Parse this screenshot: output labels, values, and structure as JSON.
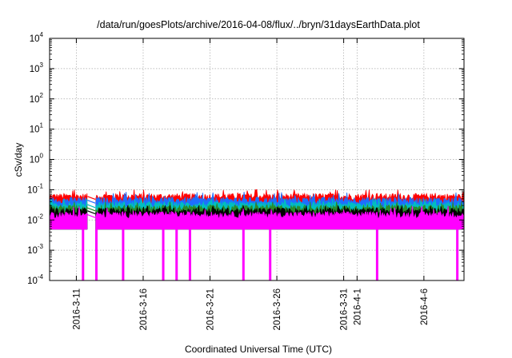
{
  "chart_data": {
    "type": "area",
    "title": "/data/run/goesPlots/archive/2016-04-08/flux/../bryn/31daysEarthData.plot",
    "xlabel": "Coordinated Universal Time (UTC)",
    "ylabel": "cSv/day",
    "yscale": "log",
    "ylim": [
      0.0001,
      10000
    ],
    "grid": true,
    "legend": "none",
    "x_range": [
      "2016-03-09",
      "2016-04-09"
    ],
    "x_ticks": [
      "2016-3-11",
      "2016-3-16",
      "2016-3-21",
      "2016-3-26",
      "2016-3-31",
      "2016-4-1",
      "2016-4-6"
    ],
    "x_tick_dates": [
      "2016-03-11",
      "2016-03-16",
      "2016-03-21",
      "2016-03-26",
      "2016-03-31",
      "2016-04-01",
      "2016-04-06"
    ],
    "y_ticks": [
      {
        "base": "10",
        "exp": "-4",
        "value": 0.0001
      },
      {
        "base": "10",
        "exp": "-3",
        "value": 0.001
      },
      {
        "base": "10",
        "exp": "-2",
        "value": 0.01
      },
      {
        "base": "10",
        "exp": "-1",
        "value": 0.1
      },
      {
        "base": "10",
        "exp": "0",
        "value": 1
      },
      {
        "base": "10",
        "exp": "1",
        "value": 10
      },
      {
        "base": "10",
        "exp": "2",
        "value": 100
      },
      {
        "base": "10",
        "exp": "3",
        "value": 1000
      },
      {
        "base": "10",
        "exp": "4",
        "value": 10000
      }
    ],
    "series": [
      {
        "color": "#ff0000",
        "typical": 0.06,
        "peak": 0.1
      },
      {
        "color": "#1e6eff",
        "typical": 0.045,
        "peak": 0.085
      },
      {
        "color": "#00bfbf",
        "typical": 0.032,
        "peak": 0.05
      },
      {
        "color": "#2a8a2a",
        "typical": 0.025,
        "peak": 0.04
      },
      {
        "color": "#000000",
        "typical": 0.02,
        "peak": 0.03
      },
      {
        "color": "#ff00ff",
        "typical": 0.015,
        "peak": 0.03,
        "floor": 0.005
      }
    ],
    "data_gaps": [
      [
        "2016-03-11 20:00",
        "2016-03-12 10:00"
      ]
    ],
    "magenta_dropouts": [
      "2016-03-11",
      "2016-03-12",
      "2016-03-14",
      "2016-03-17",
      "2016-03-18",
      "2016-03-19",
      "2016-03-23",
      "2016-03-25",
      "2016-04-02",
      "2016-04-08"
    ]
  }
}
